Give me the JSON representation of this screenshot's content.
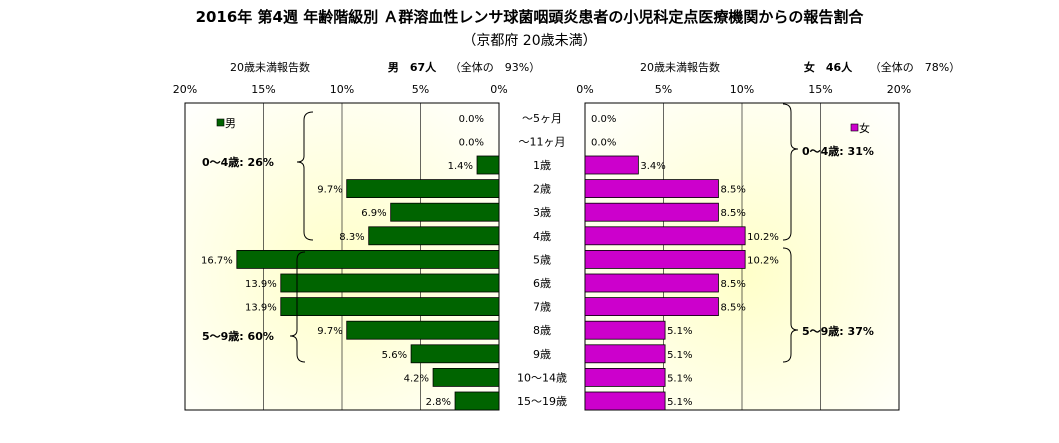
{
  "title": "2016年 第4週 年齢階級別 Ａ群溶血性レンサ球菌咽頭炎患者の小児科定点医療機関からの報告割合",
  "subtitle": "（京都府 20歳未満）",
  "left_header": {
    "caption": "20歳未満報告数",
    "sex_count": "男　67人",
    "share": "（全体の　93%）"
  },
  "right_header": {
    "caption": "20歳未満報告数",
    "sex_count": "女　46人",
    "share": "（全体の　78%）"
  },
  "left_ticks": [
    "20%",
    "15%",
    "10%",
    "5%",
    "0%"
  ],
  "right_ticks": [
    "0%",
    "5%",
    "10%",
    "15%",
    "20%"
  ],
  "legend": {
    "male": "男",
    "female": "女"
  },
  "group_labels": {
    "male_0_4": "0～4歳: 26%",
    "male_5_9": "5～9歳: 60%",
    "female_0_4": "0～4歳: 31%",
    "female_5_9": "5～9歳: 37%"
  },
  "colors": {
    "male": "#006400",
    "female": "#cc00cc",
    "plot_bg_center": "#ffffcc"
  },
  "chart_data": {
    "type": "bar",
    "orientation": "horizontal-population-pyramid",
    "categories": [
      "～5ヶ月",
      "～11ヶ月",
      "1歳",
      "2歳",
      "3歳",
      "4歳",
      "5歳",
      "6歳",
      "7歳",
      "8歳",
      "9歳",
      "10～14歳",
      "15～19歳"
    ],
    "series": [
      {
        "name": "男",
        "values": [
          0.0,
          0.0,
          1.4,
          9.7,
          6.9,
          8.3,
          16.7,
          13.9,
          13.9,
          9.7,
          5.6,
          4.2,
          2.8
        ],
        "labels": [
          "0.0%",
          "0.0%",
          "1.4%",
          "9.7%",
          "6.9%",
          "8.3%",
          "16.7%",
          "13.9%",
          "13.9%",
          "9.7%",
          "5.6%",
          "4.2%",
          "2.8%"
        ]
      },
      {
        "name": "女",
        "values": [
          0.0,
          0.0,
          3.4,
          8.5,
          8.5,
          10.2,
          10.2,
          8.5,
          8.5,
          5.1,
          5.1,
          5.1,
          5.1
        ],
        "labels": [
          "0.0%",
          "0.0%",
          "3.4%",
          "8.5%",
          "8.5%",
          "10.2%",
          "10.2%",
          "8.5%",
          "8.5%",
          "5.1%",
          "5.1%",
          "5.1%",
          "5.1%"
        ]
      }
    ],
    "xlim": [
      0,
      20
    ],
    "grid": true
  }
}
